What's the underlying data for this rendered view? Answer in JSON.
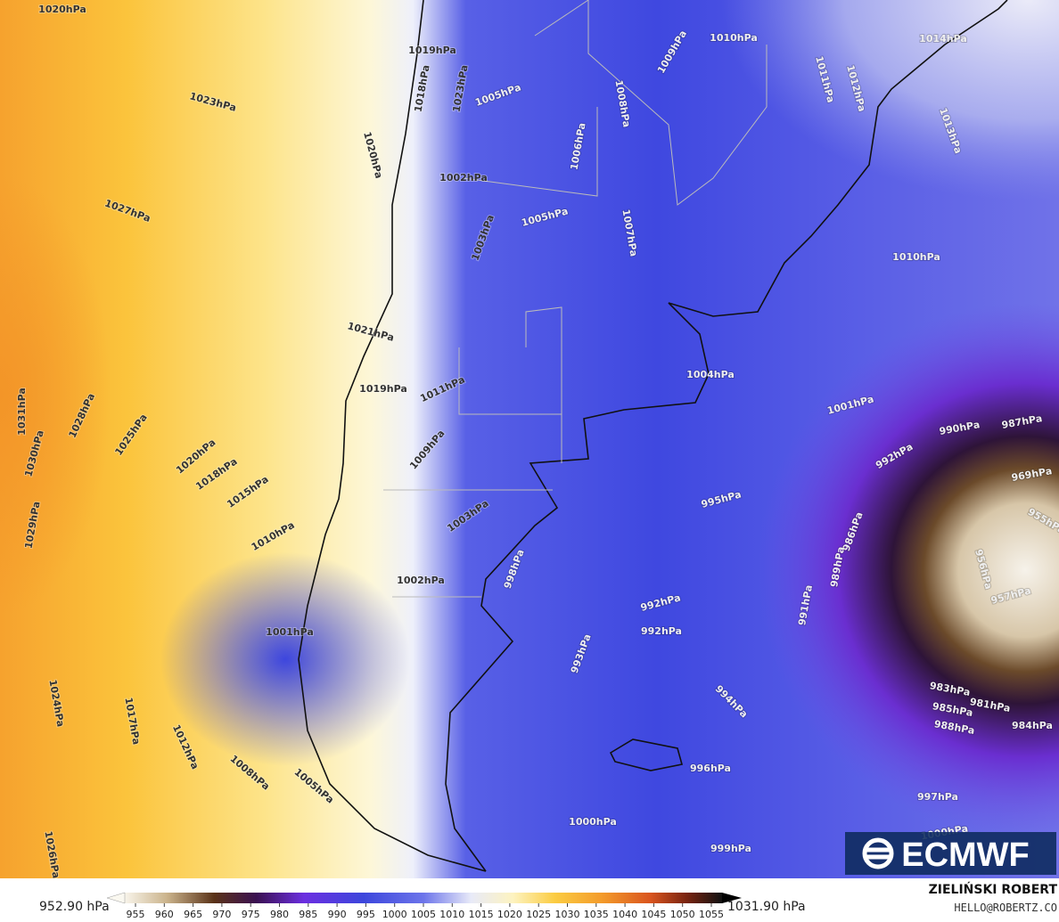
{
  "map": {
    "isobar_labels": [
      "1020hPa",
      "1023hPa",
      "1020hPa",
      "1027hPa",
      "1031hPa",
      "1030hPa",
      "1028hPa",
      "1025hPa",
      "1029hPa",
      "1020hPa",
      "1018hPa",
      "1015hPa",
      "1010hPa",
      "1024hPa",
      "1017hPa",
      "1012hPa",
      "1008hPa",
      "1005hPa",
      "1026hPa",
      "1001hPa",
      "1002hPa",
      "1003hPa",
      "998hPa",
      "1004hPa",
      "1001hPa",
      "1010hPa",
      "1013hPa",
      "1014hPa",
      "1012hPa",
      "1011hPa",
      "1010hPa",
      "1009hPa",
      "1008hPa",
      "1006hPa",
      "1007hPa",
      "1005hPa",
      "1003hPa",
      "1002hPa",
      "1011hPa",
      "1009hPa",
      "1019hPa",
      "1021hPa",
      "995hPa",
      "992hPa",
      "992hPa",
      "993hPa",
      "994hPa",
      "996hPa",
      "997hPa",
      "1000hPa",
      "999hPa",
      "990hPa",
      "987hPa",
      "992hPa",
      "969hPa",
      "986hPa",
      "989hPa",
      "991hPa",
      "955hPa",
      "956hPa",
      "957hPa",
      "983hPa",
      "985hPa",
      "981hPa",
      "988hPa",
      "984hPa",
      "1000hPa",
      "1019hPa",
      "1018hPa",
      "1023hPa",
      "1005hPa"
    ]
  },
  "colorbar": {
    "min_label": "952.90 hPa",
    "max_label": "1031.90 hPa",
    "ticks": [
      955,
      960,
      965,
      970,
      975,
      980,
      985,
      990,
      995,
      1000,
      1005,
      1010,
      1015,
      1020,
      1025,
      1030,
      1035,
      1040,
      1045,
      1050,
      1055
    ]
  },
  "logo": "ECMWF",
  "credit": {
    "author": "ZIELIŃSKI ROBERT",
    "contact": "HELLO@ROBERTZ.CO"
  }
}
